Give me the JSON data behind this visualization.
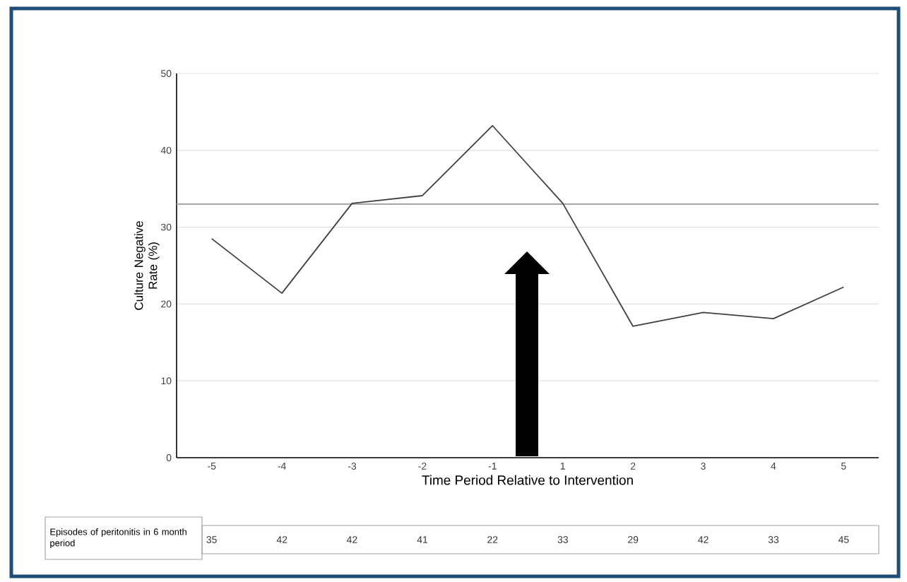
{
  "chart_data": {
    "type": "line",
    "xlabel": "Time Period Relative to Intervention",
    "ylabel": "Culture Negative Rate (%)",
    "categories": [
      "-5",
      "-4",
      "-3",
      "-2",
      "-1",
      "1",
      "2",
      "3",
      "4",
      "5"
    ],
    "series": [
      {
        "color": "#404040",
        "values": [
          28.5,
          21.4,
          33.1,
          34.1,
          43.2,
          33.1,
          17.1,
          18.9,
          18.1,
          22.2
        ]
      }
    ],
    "ylim": [
      0,
      50
    ],
    "yticks": [
      0,
      10,
      20,
      30,
      40,
      50
    ],
    "grid": "y",
    "ref_lines": [
      {
        "axis": "y",
        "value": 33,
        "color": "#a6a6a6"
      }
    ],
    "annotations": [
      "Episodes of peritonitis in 6 month period",
      "35",
      "42",
      "42",
      "41",
      "22",
      "33",
      "29",
      "42",
      "33",
      "45"
    ]
  }
}
